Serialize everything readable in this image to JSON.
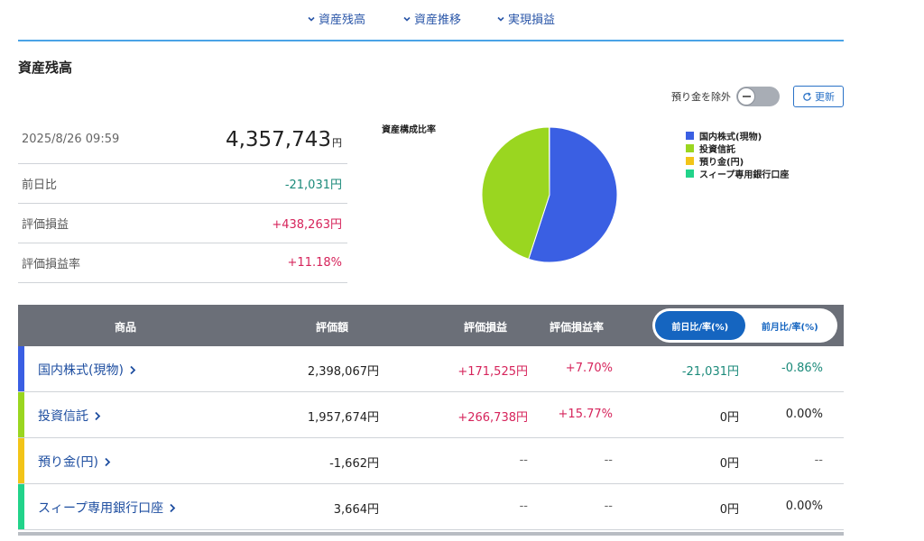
{
  "nav": {
    "tabs": [
      {
        "label": "資産残高"
      },
      {
        "label": "資産推移"
      },
      {
        "label": "実現損益"
      }
    ]
  },
  "section_title": "資産残高",
  "controls": {
    "exclude_label": "預り金を除外",
    "update_label": "更新"
  },
  "summary": {
    "datetime": "2025/8/26 09:59",
    "total": "4,357,743",
    "total_unit": "円",
    "rows": [
      {
        "label": "前日比",
        "value": "-21,031円"
      },
      {
        "label": "評価損益",
        "value": "+438,263円"
      },
      {
        "label": "評価損益率",
        "value": "+11.18%"
      }
    ]
  },
  "chart": {
    "title": "資産構成比率",
    "colors": {
      "domestic": "#3a5fe3",
      "fund": "#9ad620",
      "deposit": "#f2c418",
      "sweep": "#22d38a"
    }
  },
  "chart_data": {
    "type": "pie",
    "title": "資産構成比率",
    "categories": [
      "国内株式(現物)",
      "投資信託",
      "預り金(円)",
      "スィープ専用銀行口座"
    ],
    "values": [
      2398067,
      1957674,
      -1662,
      3664
    ],
    "legend": "right"
  },
  "table": {
    "headers": {
      "product": "商品",
      "value": "評価額",
      "pl": "評価損益",
      "pl_rate": "評価損益率",
      "seg_day": "前日比/率(%)",
      "seg_month": "前月比/率(%)"
    },
    "rows": [
      {
        "name": "国内株式(現物)",
        "value": "2,398,067円",
        "pl": "+171,525円",
        "rate": "+7.70%",
        "day": "-21,031円",
        "day_rate": "-0.86%"
      },
      {
        "name": "投資信託",
        "value": "1,957,674円",
        "pl": "+266,738円",
        "rate": "+15.77%",
        "day": "0円",
        "day_rate": "0.00%"
      },
      {
        "name": "預り金(円)",
        "value": "-1,662円",
        "pl": "--",
        "rate": "--",
        "day": "0円",
        "day_rate": "--"
      },
      {
        "name": "スィープ専用銀行口座",
        "value": "3,664円",
        "pl": "--",
        "rate": "--",
        "day": "0円",
        "day_rate": "0.00%"
      }
    ]
  }
}
